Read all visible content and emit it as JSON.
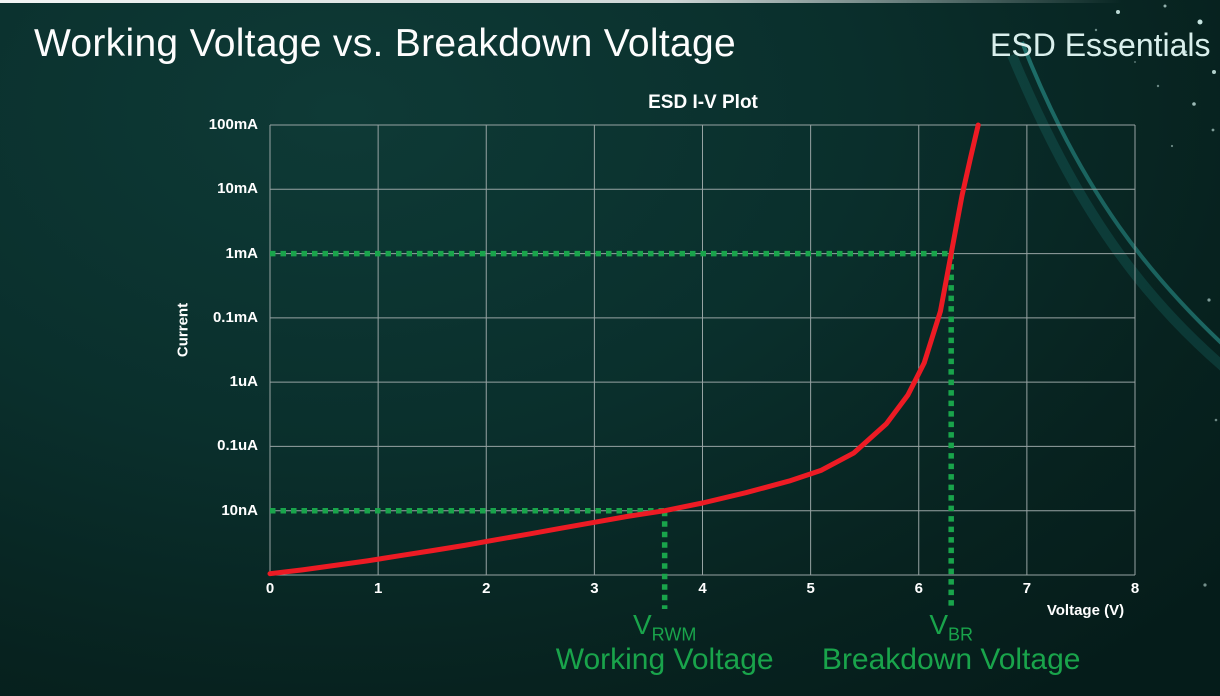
{
  "slide": {
    "title": "Working Voltage vs. Breakdown Voltage",
    "brand": "ESD Essentials"
  },
  "chart_data": {
    "type": "line",
    "title": "ESD I-V Plot",
    "xlabel": "Voltage (V)",
    "ylabel": "Current",
    "xlim": [
      0,
      8
    ],
    "x_ticks": [
      "0",
      "1",
      "2",
      "3",
      "4",
      "5",
      "6",
      "7",
      "8"
    ],
    "y_tick_labels_top_to_bottom": [
      "100mA",
      "10mA",
      "1mA",
      "0.1mA",
      "1uA",
      "0.1uA",
      "10nA"
    ],
    "y_scale": "log, one decade per gridline, unlabeled bottom axis",
    "grid": true,
    "legend": "none",
    "colors": {
      "curve": "#ed1b24",
      "annotation": "#19a44b",
      "grid": "#97a3a3",
      "text": "#ffffff"
    },
    "series": [
      {
        "name": "ESD I-V curve",
        "color": "#ed1b24",
        "points_v_decade": [
          [
            0,
            0.02
          ],
          [
            0.3,
            0.08
          ],
          [
            0.6,
            0.15
          ],
          [
            0.9,
            0.22
          ],
          [
            1.2,
            0.3
          ],
          [
            1.5,
            0.38
          ],
          [
            1.8,
            0.46
          ],
          [
            2.1,
            0.55
          ],
          [
            2.4,
            0.64
          ],
          [
            2.7,
            0.73
          ],
          [
            3.0,
            0.82
          ],
          [
            3.3,
            0.91
          ],
          [
            3.65,
            1.0
          ],
          [
            4.0,
            1.12
          ],
          [
            4.4,
            1.28
          ],
          [
            4.8,
            1.46
          ],
          [
            5.1,
            1.63
          ],
          [
            5.4,
            1.9
          ],
          [
            5.7,
            2.35
          ],
          [
            5.9,
            2.8
          ],
          [
            6.05,
            3.3
          ],
          [
            6.2,
            4.1
          ],
          [
            6.3,
            5.0
          ],
          [
            6.4,
            5.9
          ],
          [
            6.48,
            6.5
          ],
          [
            6.55,
            7.0
          ]
        ]
      }
    ],
    "annotations": [
      {
        "symbol": "V",
        "subscript": "RWM",
        "caption": "Working Voltage",
        "voltage": 3.65,
        "decade": 1,
        "current_level": "10nA"
      },
      {
        "symbol": "V",
        "subscript": "BR",
        "caption": "Breakdown Voltage",
        "voltage": 6.3,
        "decade": 5,
        "current_level": "1mA"
      }
    ]
  }
}
